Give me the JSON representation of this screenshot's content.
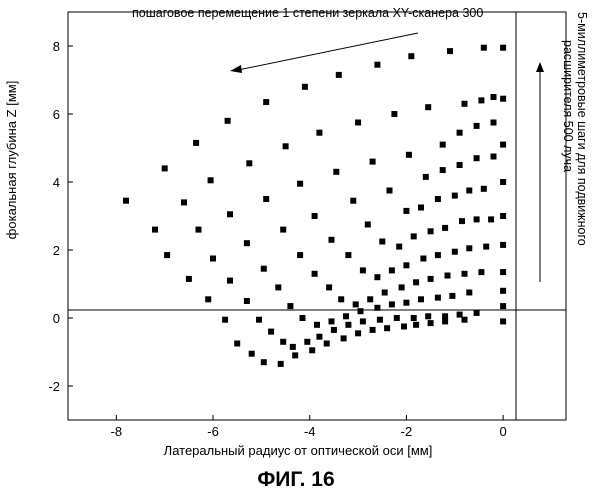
{
  "chart_data": {
    "type": "scatter",
    "top_annotation": "пошаговое перемещение 1 степени зеркала XY-сканера 300",
    "right_annotation_line1": "5-миллиметровые шаги для подвижного",
    "right_annotation_line2": "расширителя 500 луча",
    "xlabel": "Латеральный радиус от оптической оси [мм]",
    "ylabel": "фокальная глубина Z [мм]",
    "xlim": [
      -9,
      1.3
    ],
    "ylim": [
      -3,
      9
    ],
    "xticks": [
      -8,
      -6,
      -4,
      -2,
      0
    ],
    "yticks": [
      -2,
      0,
      2,
      4,
      6,
      8
    ],
    "grid": false,
    "marker_color": "#000000",
    "points": [
      [
        -7.8,
        3.45
      ],
      [
        -7.2,
        2.6
      ],
      [
        -6.95,
        1.85
      ],
      [
        -6.5,
        1.15
      ],
      [
        -6.1,
        0.55
      ],
      [
        -5.75,
        -0.05
      ],
      [
        -5.5,
        -0.75
      ],
      [
        -5.2,
        -1.05
      ],
      [
        -4.95,
        -1.3
      ],
      [
        -4.6,
        -1.35
      ],
      [
        -4.3,
        -1.1
      ],
      [
        -3.95,
        -0.95
      ],
      [
        -3.65,
        -0.75
      ],
      [
        -3.3,
        -0.6
      ],
      [
        -3.0,
        -0.45
      ],
      [
        -2.7,
        -0.35
      ],
      [
        -2.4,
        -0.3
      ],
      [
        -2.05,
        -0.25
      ],
      [
        -1.8,
        -0.2
      ],
      [
        -1.5,
        -0.15
      ],
      [
        -1.2,
        -0.1
      ],
      [
        -0.8,
        -0.05
      ],
      [
        -7.0,
        4.4
      ],
      [
        -6.6,
        3.4
      ],
      [
        -6.3,
        2.6
      ],
      [
        -6.0,
        1.75
      ],
      [
        -5.65,
        1.1
      ],
      [
        -5.3,
        0.5
      ],
      [
        -5.05,
        -0.05
      ],
      [
        -4.8,
        -0.4
      ],
      [
        -4.55,
        -0.7
      ],
      [
        -4.35,
        -0.85
      ],
      [
        -4.05,
        -0.7
      ],
      [
        -3.8,
        -0.55
      ],
      [
        -3.5,
        -0.35
      ],
      [
        -3.2,
        -0.2
      ],
      [
        -2.9,
        -0.1
      ],
      [
        -2.55,
        -0.05
      ],
      [
        -2.2,
        0.0
      ],
      [
        -1.85,
        0.0
      ],
      [
        -1.55,
        0.05
      ],
      [
        -1.2,
        0.05
      ],
      [
        -0.9,
        0.1
      ],
      [
        -0.55,
        0.15
      ],
      [
        -6.35,
        5.15
      ],
      [
        -6.05,
        4.05
      ],
      [
        -5.65,
        3.05
      ],
      [
        -5.3,
        2.2
      ],
      [
        -4.95,
        1.45
      ],
      [
        -4.65,
        0.9
      ],
      [
        -4.4,
        0.35
      ],
      [
        -4.15,
        0.0
      ],
      [
        -3.85,
        -0.2
      ],
      [
        -3.55,
        -0.1
      ],
      [
        -3.25,
        0.05
      ],
      [
        -2.95,
        0.2
      ],
      [
        -2.6,
        0.3
      ],
      [
        -2.3,
        0.4
      ],
      [
        -2.0,
        0.45
      ],
      [
        -1.7,
        0.55
      ],
      [
        -1.35,
        0.6
      ],
      [
        -1.05,
        0.65
      ],
      [
        -0.7,
        0.75
      ],
      [
        -5.7,
        5.8
      ],
      [
        -5.25,
        4.55
      ],
      [
        -4.9,
        3.5
      ],
      [
        -4.55,
        2.6
      ],
      [
        -4.2,
        1.85
      ],
      [
        -3.9,
        1.3
      ],
      [
        -3.6,
        0.9
      ],
      [
        -3.35,
        0.55
      ],
      [
        -3.05,
        0.4
      ],
      [
        -2.75,
        0.55
      ],
      [
        -2.45,
        0.75
      ],
      [
        -2.1,
        0.9
      ],
      [
        -1.8,
        1.05
      ],
      [
        -1.5,
        1.15
      ],
      [
        -1.15,
        1.25
      ],
      [
        -0.8,
        1.3
      ],
      [
        -0.45,
        1.35
      ],
      [
        -4.9,
        6.35
      ],
      [
        -4.5,
        5.05
      ],
      [
        -4.2,
        3.95
      ],
      [
        -3.9,
        3.0
      ],
      [
        -3.55,
        2.3
      ],
      [
        -3.2,
        1.85
      ],
      [
        -2.9,
        1.4
      ],
      [
        -2.6,
        1.2
      ],
      [
        -2.3,
        1.4
      ],
      [
        -2.0,
        1.55
      ],
      [
        -1.65,
        1.75
      ],
      [
        -1.35,
        1.85
      ],
      [
        -1.0,
        1.95
      ],
      [
        -0.7,
        2.05
      ],
      [
        -0.35,
        2.1
      ],
      [
        -4.1,
        6.8
      ],
      [
        -3.8,
        5.45
      ],
      [
        -3.45,
        4.3
      ],
      [
        -3.1,
        3.45
      ],
      [
        -2.8,
        2.75
      ],
      [
        -2.5,
        2.25
      ],
      [
        -2.15,
        2.1
      ],
      [
        -1.85,
        2.4
      ],
      [
        -1.5,
        2.55
      ],
      [
        -1.2,
        2.65
      ],
      [
        -0.85,
        2.85
      ],
      [
        -0.55,
        2.9
      ],
      [
        -0.25,
        2.9
      ],
      [
        -3.4,
        7.15
      ],
      [
        -3.0,
        5.75
      ],
      [
        -2.7,
        4.6
      ],
      [
        -2.35,
        3.75
      ],
      [
        -2.0,
        3.15
      ],
      [
        -1.7,
        3.25
      ],
      [
        -1.35,
        3.5
      ],
      [
        -1.0,
        3.6
      ],
      [
        -0.7,
        3.75
      ],
      [
        -0.4,
        3.8
      ],
      [
        -2.6,
        7.45
      ],
      [
        -2.25,
        6.0
      ],
      [
        -1.95,
        4.8
      ],
      [
        -1.6,
        4.15
      ],
      [
        -1.25,
        4.35
      ],
      [
        -0.9,
        4.5
      ],
      [
        -0.55,
        4.7
      ],
      [
        -0.2,
        4.75
      ],
      [
        -1.9,
        7.7
      ],
      [
        -1.55,
        6.2
      ],
      [
        -1.25,
        5.1
      ],
      [
        -0.9,
        5.45
      ],
      [
        -0.55,
        5.65
      ],
      [
        -0.2,
        5.75
      ],
      [
        -1.1,
        7.85
      ],
      [
        -0.8,
        6.3
      ],
      [
        -0.45,
        6.4
      ],
      [
        -0.2,
        6.5
      ],
      [
        -0.4,
        7.95
      ],
      [
        0.0,
        7.95
      ],
      [
        0.0,
        6.45
      ],
      [
        0.0,
        5.1
      ],
      [
        0.0,
        4.0
      ],
      [
        0.0,
        3.0
      ],
      [
        0.0,
        2.15
      ],
      [
        0.0,
        1.35
      ],
      [
        0.0,
        0.8
      ],
      [
        0.0,
        0.35
      ],
      [
        0.0,
        -0.1
      ]
    ]
  },
  "caption": "ФИГ. 16"
}
